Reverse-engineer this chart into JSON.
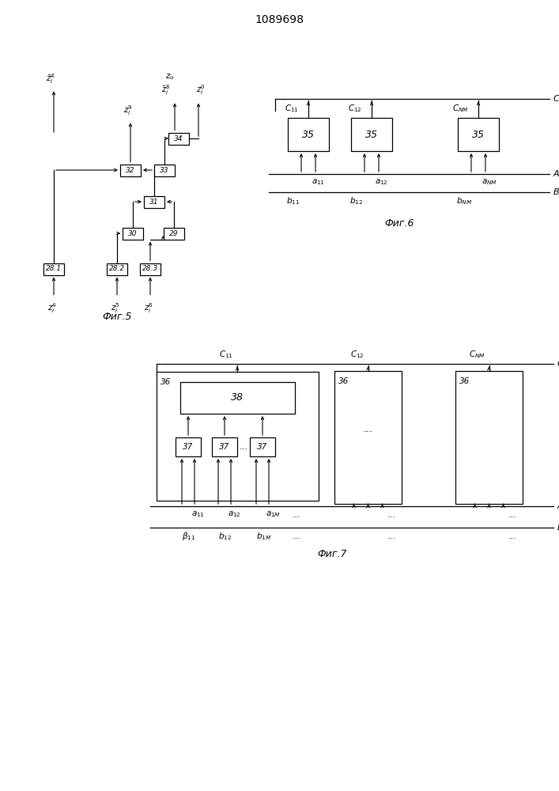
{
  "title": "1089698",
  "fig5_label": "Фиг.5",
  "fig6_label": "Фиг.6",
  "fig7_label": "Фиг.7",
  "bg_color": "#ffffff",
  "line_color": "#000000"
}
